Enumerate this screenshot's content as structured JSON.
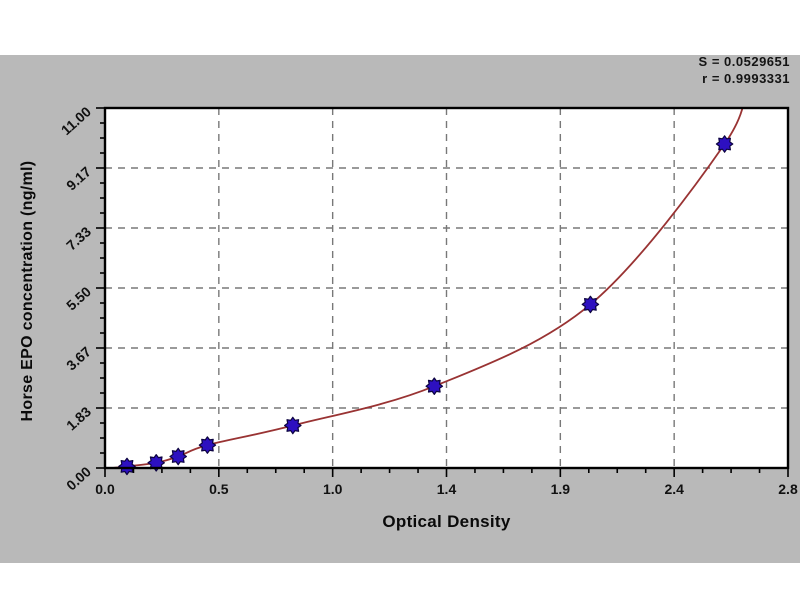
{
  "page": {
    "background": "#ffffff",
    "panel_color": "#b9b9b9"
  },
  "stats": {
    "line1": "S = 0.0529651",
    "line2": "r = 0.9993331"
  },
  "chart_data": {
    "type": "scatter",
    "title": "",
    "xlabel": "Optical Density",
    "ylabel": "Horse EPO concentration (ng/ml)",
    "xlim": [
      0,
      2.8
    ],
    "ylim": [
      0,
      11
    ],
    "x_tick_labels": [
      "0.0",
      "0.5",
      "1.0",
      "1.4",
      "1.9",
      "2.4",
      "2.8"
    ],
    "y_tick_labels": [
      "0.00",
      "1.83",
      "3.67",
      "5.50",
      "7.33",
      "9.17",
      "11.00"
    ],
    "minor_ticks_per_gap": 3,
    "grid": "dashed",
    "legend": "none",
    "points": [
      [
        0.09,
        0.05
      ],
      [
        0.21,
        0.16
      ],
      [
        0.3,
        0.35
      ],
      [
        0.42,
        0.7
      ],
      [
        0.77,
        1.3
      ],
      [
        1.35,
        2.5
      ],
      [
        1.99,
        5.0
      ],
      [
        2.54,
        9.9
      ]
    ],
    "curve_lead_point": [
      0.03,
      0.0
    ],
    "curve_extension_point": [
      2.63,
      11.9
    ],
    "colors": {
      "curve": "#993333",
      "marker_fill": "#2d10c0",
      "marker_outline": "#0d0440",
      "grid": "#787878",
      "axis": "#000000",
      "tick_text": "#111111",
      "plot_background": "#ffffff"
    }
  }
}
